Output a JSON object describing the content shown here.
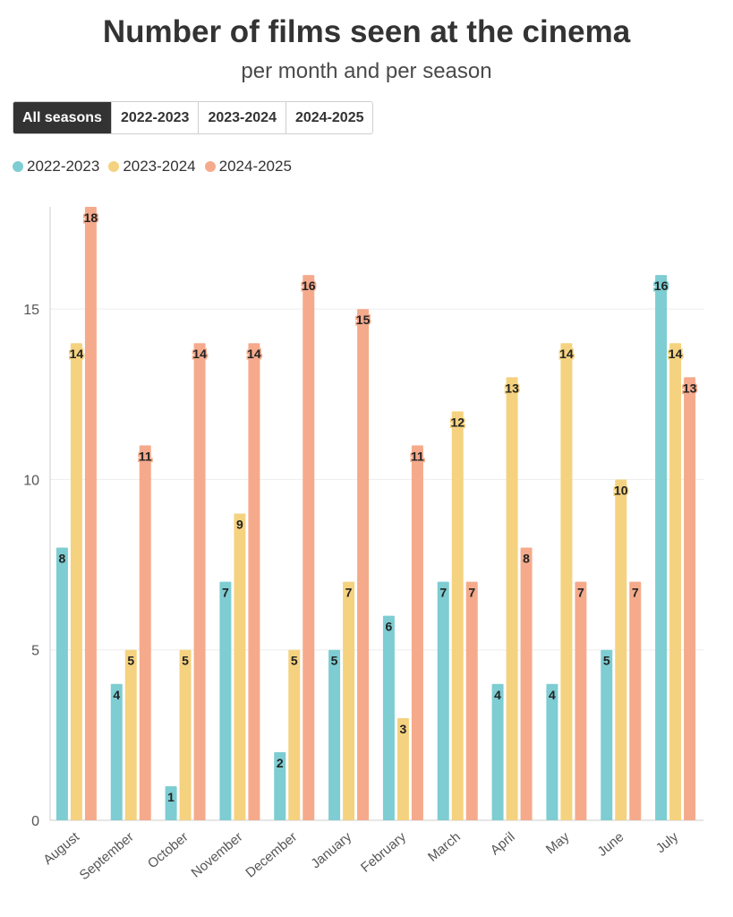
{
  "title": "Number of films seen at the cinema",
  "subtitle": "per month and per season",
  "filters": [
    {
      "label": "All seasons",
      "active": true
    },
    {
      "label": "2022-2023",
      "active": false
    },
    {
      "label": "2023-2024",
      "active": false
    },
    {
      "label": "2024-2025",
      "active": false
    }
  ],
  "colors": {
    "2022-2023": "#7dcdd2",
    "2023-2024": "#f5d27f",
    "2024-2025": "#f5aa8c"
  },
  "chart_data": {
    "type": "bar",
    "title": "Number of films seen at the cinema",
    "subtitle": "per month and per season",
    "categories": [
      "August",
      "September",
      "October",
      "November",
      "December",
      "January",
      "February",
      "March",
      "April",
      "May",
      "June",
      "July"
    ],
    "series": [
      {
        "name": "2022-2023",
        "color": "#7dcdd2",
        "values": [
          8,
          4,
          1,
          7,
          2,
          5,
          6,
          7,
          4,
          4,
          5,
          16
        ]
      },
      {
        "name": "2023-2024",
        "color": "#f5d27f",
        "values": [
          14,
          5,
          5,
          9,
          5,
          7,
          3,
          12,
          13,
          14,
          10,
          14
        ]
      },
      {
        "name": "2024-2025",
        "color": "#f5aa8c",
        "values": [
          18,
          11,
          14,
          14,
          16,
          15,
          11,
          7,
          8,
          7,
          7,
          13
        ]
      }
    ],
    "yticks": [
      0,
      5,
      10,
      15
    ],
    "ylim": [
      0,
      18
    ],
    "grid": true,
    "legend": "top-left",
    "xlabel": "",
    "ylabel": ""
  }
}
